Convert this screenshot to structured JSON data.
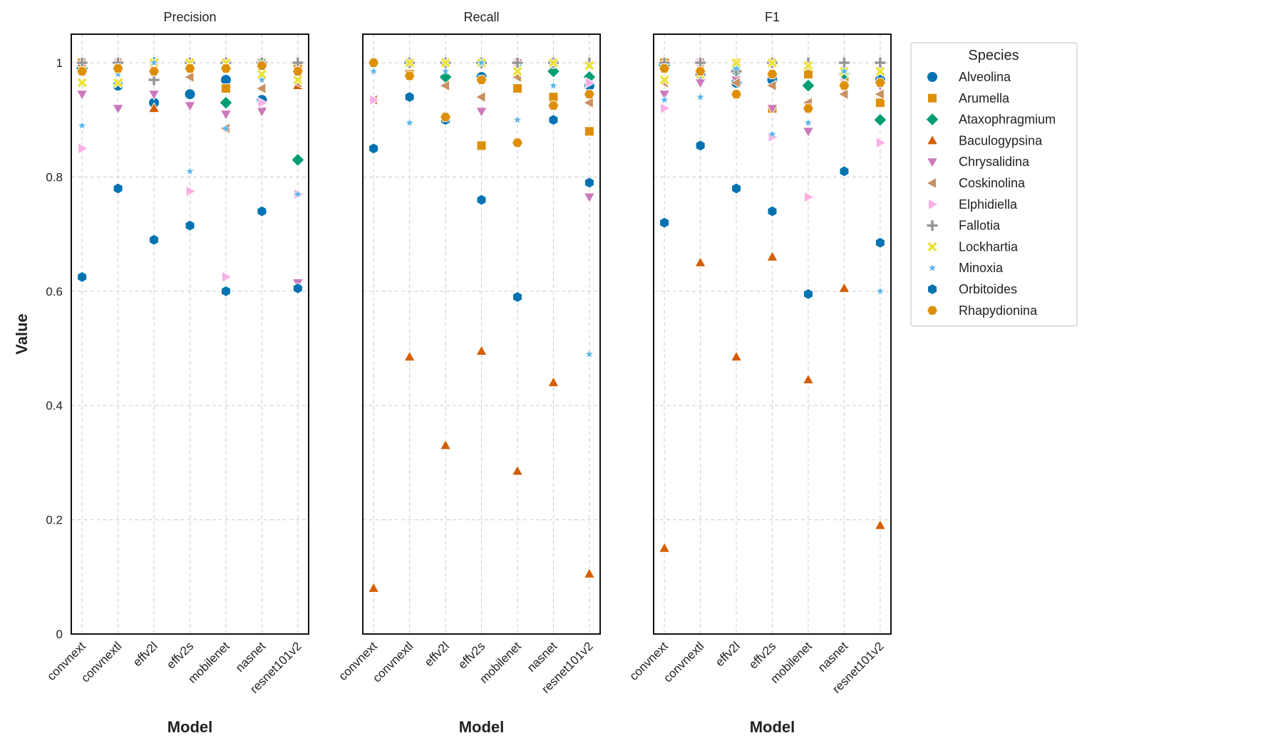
{
  "chart_data": [
    {
      "type": "scatter",
      "title": "Precision",
      "x_label": "Model",
      "y_label": "Value",
      "categories": [
        "convnext",
        "convnextl",
        "effv2l",
        "effv2s",
        "mobilenet",
        "nasnet",
        "resnet101v2"
      ],
      "ylim": [
        0,
        1.05
      ],
      "yticks": [
        0.0,
        0.2,
        0.4,
        0.6,
        0.8,
        1.0
      ],
      "grid": true,
      "legend": "outside right",
      "legend_title": "Species",
      "series": [
        {
          "name": "Alveolina",
          "color": "#0173b2",
          "marker": "circle",
          "values": [
            0.99,
            0.96,
            0.93,
            0.945,
            0.97,
            0.935,
            0.99
          ]
        },
        {
          "name": "Arumella",
          "color": "#de8f05",
          "marker": "square",
          "values": [
            1.0,
            1.0,
            1.0,
            1.0,
            0.955,
            1.0,
            0.99
          ]
        },
        {
          "name": "Ataxophragmium",
          "color": "#029e73",
          "marker": "diamond",
          "values": [
            0.99,
            1.0,
            1.0,
            1.0,
            0.93,
            1.0,
            0.83
          ]
        },
        {
          "name": "Baculogypsina",
          "color": "#d55e00",
          "marker": "triangle-up",
          "values": [
            1.0,
            1.0,
            0.92,
            1.0,
            1.0,
            1.0,
            0.96
          ]
        },
        {
          "name": "Chrysalidina",
          "color": "#cc78bc",
          "marker": "triangle-down",
          "values": [
            0.945,
            0.92,
            0.945,
            0.925,
            0.91,
            0.915,
            0.615
          ]
        },
        {
          "name": "Coskinolina",
          "color": "#ca9161",
          "marker": "triangle-left",
          "values": [
            1.0,
            1.0,
            1.0,
            0.975,
            0.885,
            0.955,
            0.965
          ]
        },
        {
          "name": "Elphidiella",
          "color": "#fbafe4",
          "marker": "triangle-right",
          "values": [
            0.85,
            1.0,
            1.0,
            0.775,
            0.625,
            0.93,
            0.77
          ]
        },
        {
          "name": "Fallotia",
          "color": "#949494",
          "marker": "plus",
          "values": [
            1.0,
            1.0,
            0.97,
            1.0,
            1.0,
            1.0,
            1.0
          ]
        },
        {
          "name": "Lockhartia",
          "color": "#ece133",
          "marker": "x",
          "values": [
            0.965,
            0.965,
            1.0,
            1.0,
            1.0,
            0.98,
            0.97
          ]
        },
        {
          "name": "Minoxia",
          "color": "#56b4e9",
          "marker": "star",
          "values": [
            0.89,
            0.98,
            1.0,
            0.81,
            0.885,
            0.97,
            0.77
          ]
        },
        {
          "name": "Orbitoides",
          "color": "#0173b2",
          "marker": "hexagon",
          "values": [
            0.625,
            0.78,
            0.69,
            0.715,
            0.6,
            0.74,
            0.605
          ]
        },
        {
          "name": "Rhapydionina",
          "color": "#de8f05",
          "marker": "hexagon-flat",
          "values": [
            0.985,
            0.99,
            0.985,
            0.99,
            0.99,
            0.995,
            0.985
          ]
        }
      ]
    },
    {
      "type": "scatter",
      "title": "Recall",
      "x_label": "Model",
      "sharey": true,
      "categories": [
        "convnext",
        "convnextl",
        "effv2l",
        "effv2s",
        "mobilenet",
        "nasnet",
        "resnet101v2"
      ],
      "ylim": [
        0,
        1.05
      ],
      "yticks": [
        0.0,
        0.2,
        0.4,
        0.6,
        0.8,
        1.0
      ],
      "grid": true,
      "series": [
        {
          "name": "Alveolina",
          "color": "#0173b2",
          "marker": "circle",
          "values": [
            1.0,
            1.0,
            0.9,
            0.975,
            1.0,
            1.0,
            0.96
          ]
        },
        {
          "name": "Arumella",
          "color": "#de8f05",
          "marker": "square",
          "values": [
            1.0,
            0.98,
            1.0,
            0.855,
            0.955,
            0.94,
            0.88
          ]
        },
        {
          "name": "Ataxophragmium",
          "color": "#029e73",
          "marker": "diamond",
          "values": [
            1.0,
            1.0,
            0.975,
            1.0,
            1.0,
            0.985,
            0.975
          ]
        },
        {
          "name": "Baculogypsina",
          "color": "#d55e00",
          "marker": "triangle-up",
          "values": [
            0.08,
            0.485,
            0.33,
            0.495,
            0.285,
            0.44,
            0.105
          ]
        },
        {
          "name": "Chrysalidina",
          "color": "#cc78bc",
          "marker": "triangle-down",
          "values": [
            1.0,
            1.0,
            1.0,
            0.915,
            1.0,
            1.0,
            0.765
          ]
        },
        {
          "name": "Coskinolina",
          "color": "#ca9161",
          "marker": "triangle-left",
          "values": [
            0.935,
            1.0,
            0.96,
            0.94,
            0.975,
            1.0,
            0.93
          ]
        },
        {
          "name": "Elphidiella",
          "color": "#fbafe4",
          "marker": "triangle-right",
          "values": [
            0.935,
            1.0,
            1.0,
            1.0,
            1.0,
            1.0,
            0.965
          ]
        },
        {
          "name": "Fallotia",
          "color": "#949494",
          "marker": "plus",
          "values": [
            1.0,
            1.0,
            1.0,
            1.0,
            1.0,
            1.0,
            1.0
          ]
        },
        {
          "name": "Lockhartia",
          "color": "#ece133",
          "marker": "x",
          "values": [
            1.0,
            1.0,
            1.0,
            1.0,
            0.985,
            1.0,
            0.995
          ]
        },
        {
          "name": "Minoxia",
          "color": "#56b4e9",
          "marker": "star",
          "values": [
            0.985,
            0.895,
            0.985,
            1.0,
            0.9,
            0.96,
            0.49
          ]
        },
        {
          "name": "Orbitoides",
          "color": "#0173b2",
          "marker": "hexagon",
          "values": [
            0.85,
            0.94,
            0.9,
            0.76,
            0.59,
            0.9,
            0.79
          ]
        },
        {
          "name": "Rhapydionina",
          "color": "#de8f05",
          "marker": "hexagon-flat",
          "values": [
            1.0,
            0.977,
            0.905,
            0.97,
            0.86,
            0.925,
            0.945
          ]
        }
      ]
    },
    {
      "type": "scatter",
      "title": "F1",
      "x_label": "Model",
      "sharey": true,
      "categories": [
        "convnext",
        "convnextl",
        "effv2l",
        "effv2s",
        "mobilenet",
        "nasnet",
        "resnet101v2"
      ],
      "ylim": [
        0,
        1.05
      ],
      "yticks": [
        0.0,
        0.2,
        0.4,
        0.6,
        0.8,
        1.0
      ],
      "grid": true,
      "series": [
        {
          "name": "Alveolina",
          "color": "#0173b2",
          "marker": "circle",
          "values": [
            0.995,
            0.98,
            0.965,
            0.97,
            0.985,
            0.965,
            0.97
          ]
        },
        {
          "name": "Arumella",
          "color": "#de8f05",
          "marker": "square",
          "values": [
            1.0,
            0.99,
            1.0,
            0.92,
            0.98,
            0.97,
            0.93
          ]
        },
        {
          "name": "Ataxophragmium",
          "color": "#029e73",
          "marker": "diamond",
          "values": [
            0.995,
            1.0,
            0.985,
            1.0,
            0.96,
            0.98,
            0.9
          ]
        },
        {
          "name": "Baculogypsina",
          "color": "#d55e00",
          "marker": "triangle-up",
          "values": [
            0.15,
            0.65,
            0.485,
            0.66,
            0.445,
            0.605,
            0.19
          ]
        },
        {
          "name": "Chrysalidina",
          "color": "#cc78bc",
          "marker": "triangle-down",
          "values": [
            0.945,
            0.965,
            0.97,
            0.92,
            0.88,
            0.955,
            0.96
          ]
        },
        {
          "name": "Coskinolina",
          "color": "#ca9161",
          "marker": "triangle-left",
          "values": [
            0.965,
            1.0,
            0.965,
            0.96,
            0.93,
            0.945,
            0.945
          ]
        },
        {
          "name": "Elphidiella",
          "color": "#fbafe4",
          "marker": "triangle-right",
          "values": [
            0.92,
            1.0,
            1.0,
            0.87,
            0.765,
            0.965,
            0.86
          ]
        },
        {
          "name": "Fallotia",
          "color": "#949494",
          "marker": "plus",
          "values": [
            1.0,
            1.0,
            0.985,
            1.0,
            1.0,
            1.0,
            1.0
          ]
        },
        {
          "name": "Lockhartia",
          "color": "#ece133",
          "marker": "x",
          "values": [
            0.97,
            0.98,
            1.0,
            1.0,
            0.995,
            0.985,
            0.985
          ]
        },
        {
          "name": "Minoxia",
          "color": "#56b4e9",
          "marker": "star",
          "values": [
            0.935,
            0.94,
            0.99,
            0.875,
            0.895,
            0.985,
            0.6
          ]
        },
        {
          "name": "Orbitoides",
          "color": "#0173b2",
          "marker": "hexagon",
          "values": [
            0.72,
            0.855,
            0.78,
            0.74,
            0.595,
            0.81,
            0.685
          ]
        },
        {
          "name": "Rhapydionina",
          "color": "#de8f05",
          "marker": "hexagon-flat",
          "values": [
            0.99,
            0.985,
            0.945,
            0.98,
            0.92,
            0.96,
            0.965
          ]
        }
      ]
    }
  ]
}
